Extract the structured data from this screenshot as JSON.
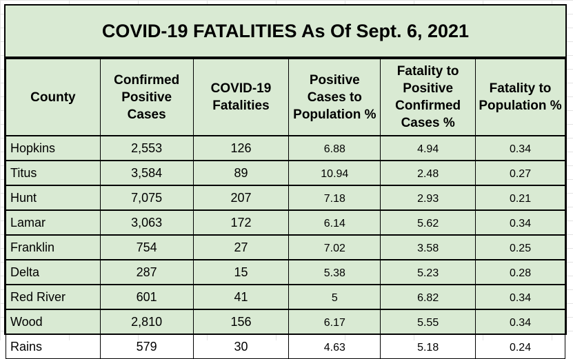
{
  "title": "COVID-19 FATALITIES As Of Sept. 6, 2021",
  "headers": [
    "County",
    "Confirmed Positive Cases",
    "COVID-19 Fatalities",
    "Positive Cases to Population %",
    "Fatality to Positive Confirmed Cases %",
    "Fatality  to Population %"
  ],
  "rows": [
    [
      "Hopkins",
      "2,553",
      "126",
      "6.88",
      "4.94",
      "0.34"
    ],
    [
      "Titus",
      "3,584",
      "89",
      "10.94",
      "2.48",
      "0.27"
    ],
    [
      "Hunt",
      "7,075",
      "207",
      "7.18",
      "2.93",
      "0.21"
    ],
    [
      "Lamar",
      "3,063",
      "172",
      "6.14",
      "5.62",
      "0.34"
    ],
    [
      "Franklin",
      "754",
      "27",
      "7.02",
      "3.58",
      "0.25"
    ],
    [
      "Delta",
      "287",
      "15",
      "5.38",
      "5.23",
      "0.28"
    ],
    [
      "Red River",
      "601",
      "41",
      "5",
      "6.82",
      "0.34"
    ],
    [
      "Wood",
      "2,810",
      "156",
      "6.17",
      "5.55",
      "0.34"
    ],
    [
      "Rains",
      "579",
      "30",
      "4.63",
      "5.18",
      "0.24"
    ]
  ],
  "colors": {
    "fill": "#d9ead3",
    "border": "#000000"
  }
}
